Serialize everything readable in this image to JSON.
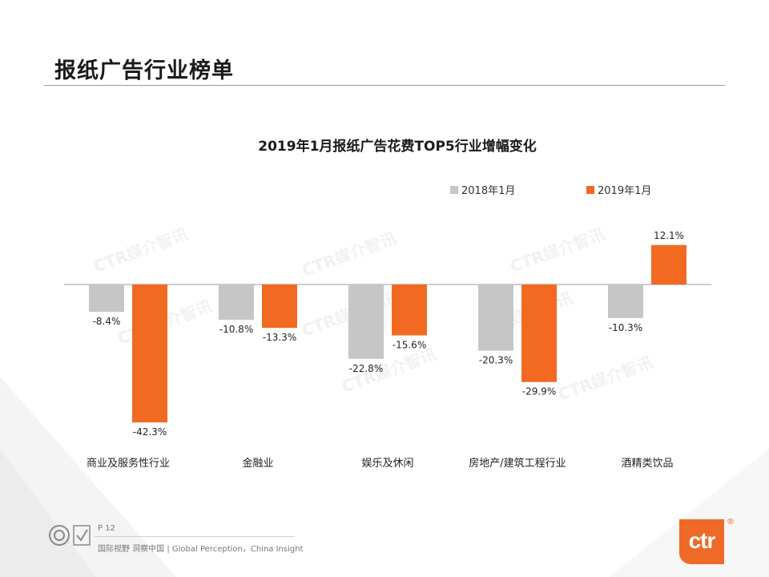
{
  "page": {
    "title": "报纸广告行业榜单",
    "page_number": "P 12",
    "tagline": "国际视野 洞察中国 | Global Perception，China Insight",
    "logo_text": "ctr",
    "logo_reg": "®",
    "watermark": "CTR媒介智讯"
  },
  "colors": {
    "series_2018": "#c6c6c6",
    "series_2019": "#f26a21",
    "brand": "#ee6a26"
  },
  "chart_data": {
    "type": "bar",
    "title": "2019年1月报纸广告花费TOP5行业增幅变化",
    "categories": [
      "商业及服务性行业",
      "金融业",
      "娱乐及休闲",
      "房地产/建筑工程行业",
      "酒精类饮品"
    ],
    "series": [
      {
        "name": "2018年1月",
        "values": [
          -8.4,
          -10.8,
          -22.8,
          -20.3,
          -10.3
        ],
        "labels": [
          "-8.4%",
          "-10.8%",
          "-22.8%",
          "-20.3%",
          "-10.3%"
        ]
      },
      {
        "name": "2019年1月",
        "values": [
          -42.3,
          -13.3,
          -15.6,
          -29.9,
          12.1
        ],
        "labels": [
          "-42.3%",
          "-13.3%",
          "-15.6%",
          "-29.9%",
          "12.1%"
        ]
      }
    ],
    "unit": "%",
    "ylim": [
      -45,
      15
    ],
    "legend": "top-right",
    "grid": false
  }
}
